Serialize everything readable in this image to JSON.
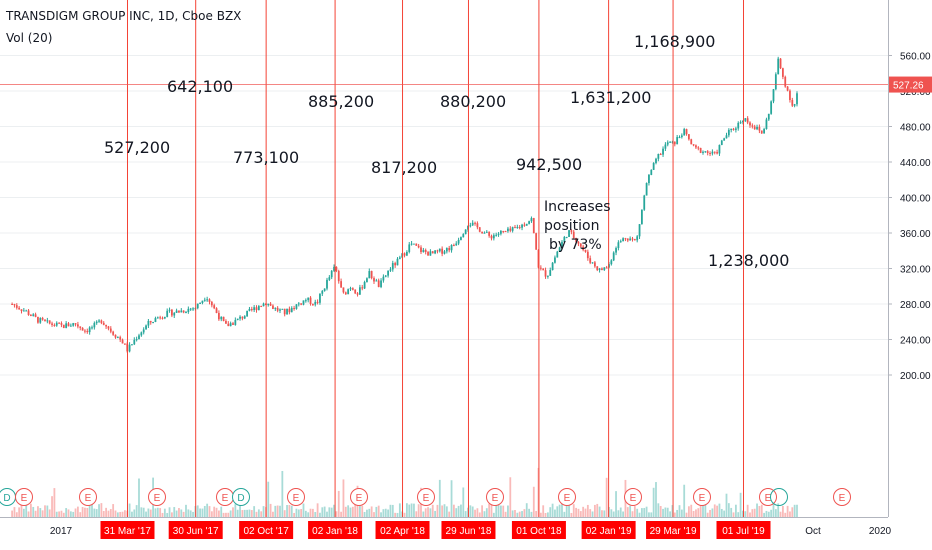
{
  "header": {
    "title": "TRANSDIGM GROUP INC, 1D, Cboe BZX",
    "volume_label": "Vol (20)"
  },
  "colors": {
    "up": "#26a69a",
    "down": "#ef5350",
    "vline": "#f44336",
    "xtag_bg": "#ff0000",
    "price_tag_bg": "#ef5350",
    "grid": "#eceff1"
  },
  "chart_data": {
    "type": "candlestick",
    "ylim": [
      180,
      570
    ],
    "y_ticks": [
      200,
      240,
      280,
      320,
      360,
      400,
      440,
      480,
      520,
      560
    ],
    "current_price": "527.26",
    "x_plain_labels": [
      "2017",
      "Oct",
      "2020"
    ],
    "quarter_lines": [
      "31 Mar '17",
      "30 Jun '17",
      "02 Oct '17",
      "02 Jan '18",
      "02 Apr '18",
      "29 Jun '18",
      "01 Oct '18",
      "02 Jan '19",
      "29 Mar '19",
      "01 Jul '19"
    ],
    "annotations": [
      "527,200",
      "642,100",
      "773,100",
      "885,200",
      "817,200",
      "880,200",
      "942,500",
      "1,631,200",
      "1,168,900",
      "1,238,000",
      "Increases position by 73%"
    ],
    "event_markers": [
      "D",
      "E",
      "E",
      "E",
      "E",
      "D",
      "E",
      "E",
      "E",
      "E",
      "E",
      "E",
      "E",
      "E",
      "E",
      "E",
      "E",
      "E"
    ],
    "price_series": {
      "dates": [
        "2016-10-28",
        "2016-11-15",
        "2016-12-01",
        "2016-12-15",
        "2017-01-03",
        "2017-01-20",
        "2017-02-03",
        "2017-02-17",
        "2017-02-24",
        "2017-03-10",
        "2017-03-24",
        "2017-03-31",
        "2017-04-14",
        "2017-04-28",
        "2017-05-12",
        "2017-05-26",
        "2017-06-09",
        "2017-06-23",
        "2017-06-30",
        "2017-07-14",
        "2017-07-28",
        "2017-08-09",
        "2017-08-25",
        "2017-09-08",
        "2017-09-22",
        "2017-10-02",
        "2017-10-13",
        "2017-10-27",
        "2017-11-10",
        "2017-11-24",
        "2017-12-08",
        "2017-12-22",
        "2018-01-02",
        "2018-01-12",
        "2018-01-23",
        "2018-02-02",
        "2018-02-16",
        "2018-03-02",
        "2018-03-16",
        "2018-03-29",
        "2018-04-13",
        "2018-04-27",
        "2018-05-11",
        "2018-05-25",
        "2018-06-08",
        "2018-06-22",
        "2018-06-29",
        "2018-07-13",
        "2018-07-27",
        "2018-08-10",
        "2018-08-24",
        "2018-09-07",
        "2018-09-21",
        "2018-10-01",
        "2018-10-12",
        "2018-10-26",
        "2018-11-09",
        "2018-11-21",
        "2018-12-07",
        "2018-12-21",
        "2019-01-02",
        "2019-01-11",
        "2019-01-25",
        "2019-02-08",
        "2019-02-22",
        "2019-03-08",
        "2019-03-22",
        "2019-03-29",
        "2019-04-12",
        "2019-04-26",
        "2019-05-10",
        "2019-05-24",
        "2019-06-07",
        "2019-06-21",
        "2019-07-01",
        "2019-07-12",
        "2019-07-26",
        "2019-08-02",
        "2019-08-09",
        "2019-08-16",
        "2019-08-23",
        "2019-09-06",
        "2019-09-13"
      ],
      "close": [
        280,
        272,
        262,
        258,
        255,
        258,
        250,
        256,
        262,
        249,
        238,
        228,
        245,
        258,
        266,
        270,
        272,
        275,
        276,
        290,
        270,
        255,
        262,
        270,
        278,
        282,
        275,
        270,
        278,
        285,
        280,
        305,
        322,
        290,
        300,
        292,
        315,
        300,
        320,
        330,
        348,
        340,
        336,
        340,
        345,
        362,
        372,
        365,
        356,
        360,
        362,
        368,
        376,
        320,
        312,
        340,
        362,
        352,
        330,
        318,
        323,
        345,
        356,
        350,
        418,
        445,
        462,
        460,
        475,
        455,
        452,
        448,
        470,
        480,
        490,
        482,
        472,
        490,
        515,
        555,
        535,
        500,
        527
      ]
    }
  }
}
